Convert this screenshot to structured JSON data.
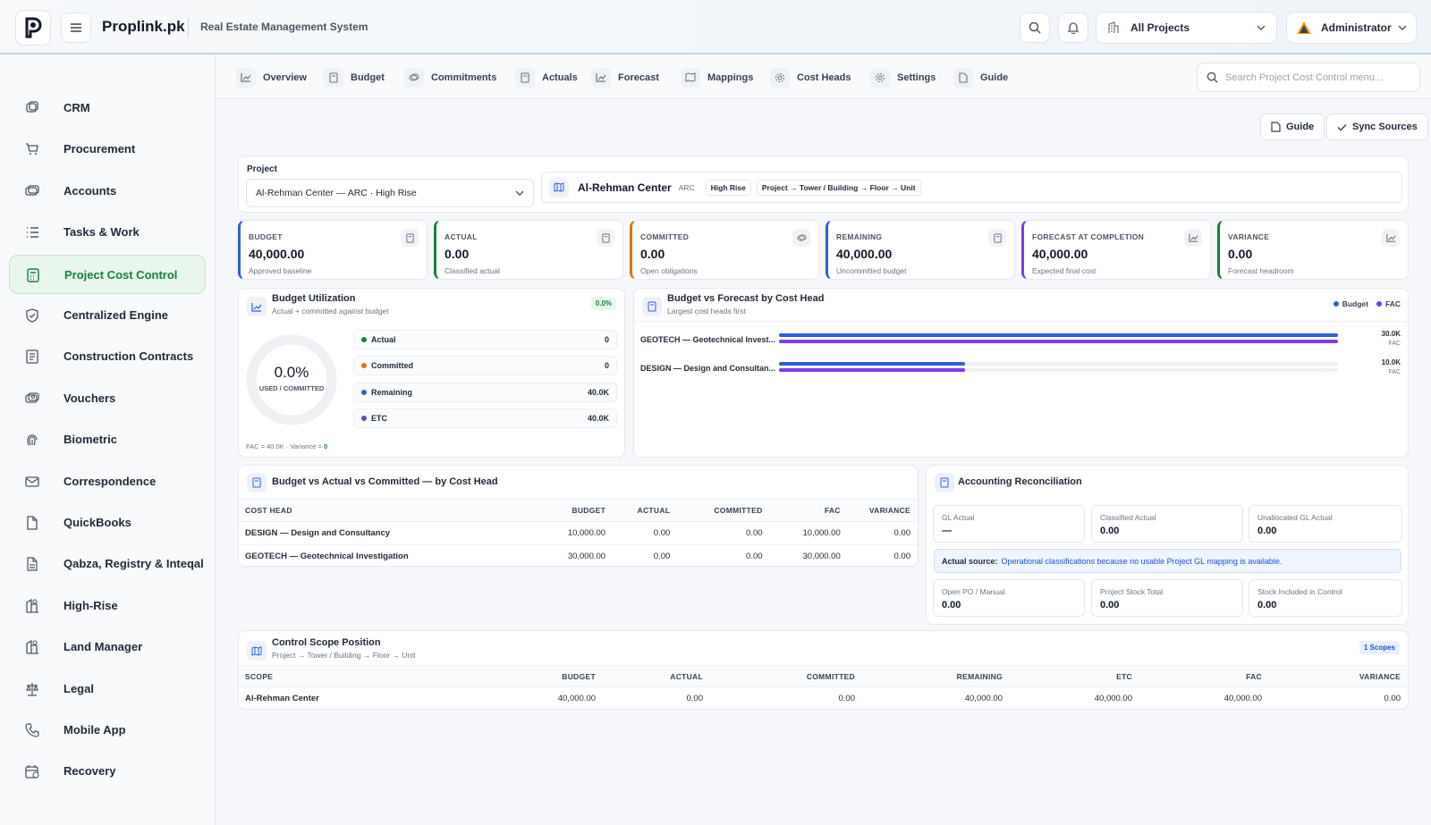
{
  "app": {
    "brand": "Proplink.pk",
    "subtitle": "Real Estate Management System"
  },
  "header": {
    "project_selector": "All Projects",
    "user": "Administrator"
  },
  "sidebar": {
    "items": [
      {
        "label": "CRM",
        "icon": "crm-icon"
      },
      {
        "label": "Procurement",
        "icon": "cart-icon"
      },
      {
        "label": "Accounts",
        "icon": "accounts-icon"
      },
      {
        "label": "Tasks & Work",
        "icon": "list-icon"
      },
      {
        "label": "Project Cost Control",
        "icon": "calculator-icon",
        "active": true
      },
      {
        "label": "Centralized Engine",
        "icon": "shield-icon"
      },
      {
        "label": "Construction Contracts",
        "icon": "contract-icon"
      },
      {
        "label": "Vouchers",
        "icon": "voucher-icon"
      },
      {
        "label": "Biometric",
        "icon": "fingerprint-icon"
      },
      {
        "label": "Correspondence",
        "icon": "mail-icon"
      },
      {
        "label": "QuickBooks",
        "icon": "file-icon"
      },
      {
        "label": "Qabza, Registry & Inteqal",
        "icon": "document-icon"
      },
      {
        "label": "High-Rise",
        "icon": "building-icon"
      },
      {
        "label": "Land Manager",
        "icon": "map-icon"
      },
      {
        "label": "Legal",
        "icon": "scale-icon"
      },
      {
        "label": "Mobile App",
        "icon": "phone-icon"
      },
      {
        "label": "Recovery",
        "icon": "calendar-icon"
      }
    ]
  },
  "tabs": [
    "Overview",
    "Budget",
    "Commitments",
    "Actuals",
    "Forecast",
    "Mappings",
    "Cost Heads",
    "Settings",
    "Guide"
  ],
  "search": {
    "placeholder": "Search Project Cost Control menu..."
  },
  "actions": {
    "guide": "Guide",
    "sync": "Sync Sources"
  },
  "project": {
    "label": "Project",
    "selected": "Al-Rehman Center — ARC · High Rise",
    "name": "Al-Rehman Center",
    "code": "ARC",
    "type_badge": "High Rise",
    "hierarchy_badge": "Project → Tower / Building → Floor → Unit"
  },
  "kpis": [
    {
      "title": "BUDGET",
      "value": "40,000.00",
      "sub": "Approved baseline",
      "color": "#2f5fd8"
    },
    {
      "title": "ACTUAL",
      "value": "0.00",
      "sub": "Classified actual",
      "color": "#16803c"
    },
    {
      "title": "COMMITTED",
      "value": "0.00",
      "sub": "Open obligations",
      "color": "#d97706"
    },
    {
      "title": "REMAINING",
      "value": "40,000.00",
      "sub": "Uncommitted budget",
      "color": "#2f5fd8"
    },
    {
      "title": "FORECAST AT COMPLETION",
      "value": "40,000.00",
      "sub": "Expected final cost",
      "color": "#7c3aed"
    },
    {
      "title": "VARIANCE",
      "value": "0.00",
      "sub": "Forecast headroom",
      "color": "#16803c"
    }
  ],
  "utilization": {
    "title": "Budget Utilization",
    "subtitle": "Actual + committed against budget",
    "badge": "0.0%",
    "ring_value": "0.0%",
    "ring_label": "USED / COMMITTED",
    "rows": [
      {
        "label": "Actual",
        "value": "0",
        "color": "#16803c"
      },
      {
        "label": "Committed",
        "value": "0",
        "color": "#d97706"
      },
      {
        "label": "Remaining",
        "value": "40.0K",
        "color": "#2f5fd8"
      },
      {
        "label": "ETC",
        "value": "40.0K",
        "color": "#6d3fe0"
      }
    ],
    "footer_text": "FAC = 40.0K · Variance = ",
    "footer_value": "0"
  },
  "bvf": {
    "title": "Budget vs Forecast by Cost Head",
    "subtitle": "Largest cost heads first",
    "legend_budget": "Budget",
    "legend_fac": "FAC",
    "budget_color": "#2f5fd8",
    "fac_color": "#7c3aed",
    "max": 30000,
    "rows": [
      {
        "label": "GEOTECH — Geotechnical Invest...",
        "budget": 30000,
        "fac": 30000,
        "value_label": "30.0K",
        "unit": "FAC"
      },
      {
        "label": "DESIGN — Design and Consultan...",
        "budget": 10000,
        "fac": 10000,
        "value_label": "10.0K",
        "unit": "FAC"
      }
    ]
  },
  "bac": {
    "title": "Budget vs Actual vs Committed — by Cost Head",
    "columns": [
      "COST HEAD",
      "BUDGET",
      "ACTUAL",
      "COMMITTED",
      "FAC",
      "VARIANCE"
    ],
    "rows": [
      [
        "DESIGN — Design and Consultancy",
        "10,000.00",
        "0.00",
        "0.00",
        "10,000.00",
        "0.00"
      ],
      [
        "GEOTECH — Geotechnical Investigation",
        "30,000.00",
        "0.00",
        "0.00",
        "30,000.00",
        "0.00"
      ]
    ]
  },
  "recon": {
    "title": "Accounting Reconciliation",
    "boxes_top": [
      {
        "label": "GL Actual",
        "value": "—"
      },
      {
        "label": "Classified Actual",
        "value": "0.00"
      },
      {
        "label": "Unallocated GL Actual",
        "value": "0.00"
      }
    ],
    "source_label": "Actual source:",
    "source_text": "Operational classifications because no usable Project GL mapping is available.",
    "boxes_bottom": [
      {
        "label": "Open PO / Manual",
        "value": "0.00"
      },
      {
        "label": "Project Stock Total",
        "value": "0.00"
      },
      {
        "label": "Stock Included in Control",
        "value": "0.00"
      }
    ]
  },
  "scope": {
    "title": "Control Scope Position",
    "subtitle": "Project → Tower / Building → Floor → Unit",
    "badge": "1 Scopes",
    "columns": [
      "SCOPE",
      "BUDGET",
      "ACTUAL",
      "COMMITTED",
      "REMAINING",
      "ETC",
      "FAC",
      "VARIANCE"
    ],
    "rows": [
      [
        "Al-Rehman Center",
        "40,000.00",
        "0.00",
        "0.00",
        "40,000.00",
        "40,000.00",
        "40,000.00",
        "0.00"
      ]
    ]
  }
}
